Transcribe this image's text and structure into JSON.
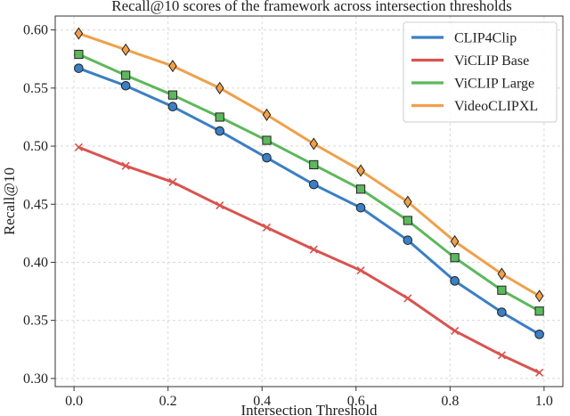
{
  "chart_data": {
    "type": "line",
    "title": "Recall@10 scores of the framework across intersection thresholds",
    "xlabel": "Intersection Threshold",
    "ylabel": "Recall@10",
    "xlim": [
      -0.04,
      1.04
    ],
    "ylim": [
      0.293,
      0.612
    ],
    "xticks": [
      0.0,
      0.2,
      0.4,
      0.6,
      0.8,
      1.0
    ],
    "xtick_labels": [
      "0.0",
      "0.2",
      "0.4",
      "0.6",
      "0.8",
      "1.0"
    ],
    "yticks": [
      0.3,
      0.35,
      0.4,
      0.45,
      0.5,
      0.55,
      0.6
    ],
    "ytick_labels": [
      "0.30",
      "0.35",
      "0.40",
      "0.45",
      "0.50",
      "0.55",
      "0.60"
    ],
    "grid": true,
    "legend_position": "top-right",
    "x": [
      0.01,
      0.11,
      0.21,
      0.31,
      0.41,
      0.51,
      0.61,
      0.71,
      0.81,
      0.91,
      0.99
    ],
    "series": [
      {
        "name": "CLIP4Clip",
        "color": "#3b7fc4",
        "marker": "circle",
        "values": [
          0.567,
          0.552,
          0.534,
          0.513,
          0.49,
          0.467,
          0.447,
          0.419,
          0.384,
          0.357,
          0.338
        ]
      },
      {
        "name": "ViCLIP Base",
        "color": "#d9534f",
        "marker": "x",
        "values": [
          0.499,
          0.483,
          0.469,
          0.449,
          0.43,
          0.411,
          0.393,
          0.369,
          0.341,
          0.32,
          0.305
        ]
      },
      {
        "name": "ViCLIP Large",
        "color": "#5cb85c",
        "marker": "square",
        "values": [
          0.579,
          0.561,
          0.544,
          0.525,
          0.505,
          0.484,
          0.463,
          0.436,
          0.404,
          0.376,
          0.358
        ]
      },
      {
        "name": "VideoCLIPXL",
        "color": "#f0a04b",
        "marker": "diamond",
        "values": [
          0.597,
          0.583,
          0.569,
          0.55,
          0.527,
          0.502,
          0.479,
          0.452,
          0.418,
          0.39,
          0.371
        ]
      }
    ]
  }
}
